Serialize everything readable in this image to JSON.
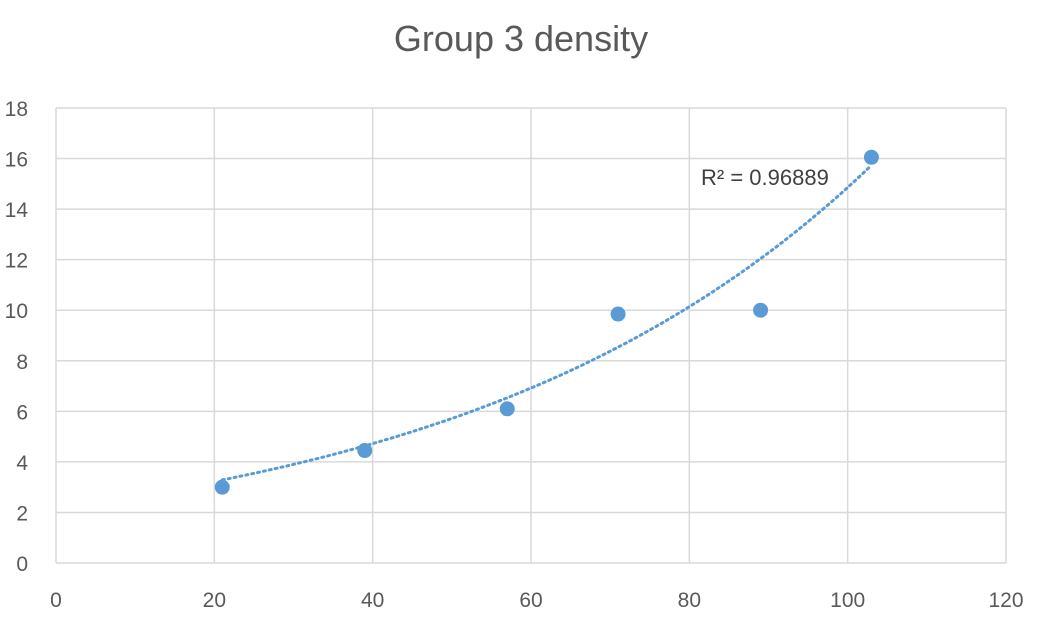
{
  "chart_data": {
    "type": "scatter",
    "title": "Group 3 density",
    "xlabel": "",
    "ylabel": "",
    "xlim": [
      0,
      120
    ],
    "ylim": [
      0,
      18
    ],
    "xticks": [
      0,
      20,
      40,
      60,
      80,
      100,
      120
    ],
    "yticks": [
      0,
      2,
      4,
      6,
      8,
      10,
      12,
      14,
      16,
      18
    ],
    "grid": true,
    "legend": "none",
    "series": [
      {
        "color": "#5b9bd5",
        "points": [
          {
            "x": 21,
            "y": 3.0
          },
          {
            "x": 39,
            "y": 4.45
          },
          {
            "x": 57,
            "y": 6.1
          },
          {
            "x": 71,
            "y": 9.85
          },
          {
            "x": 89,
            "y": 10.0
          },
          {
            "x": 103,
            "y": 16.05
          }
        ]
      }
    ],
    "trendline": {
      "type": "exponential",
      "style": "dotted",
      "color": "#5b9bd5",
      "coefficient_a": 2.2,
      "rate_b": 0.0191,
      "x_range": [
        21,
        103
      ],
      "r_squared_label": "R² = 0.96889"
    }
  }
}
